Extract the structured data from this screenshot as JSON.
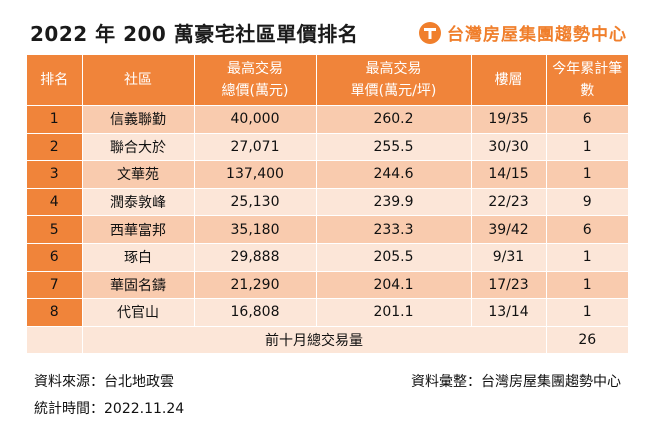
{
  "title": "2022 年 200 萬豪宅社區單價排名",
  "brand": "台灣房屋集團趨勢中心",
  "headers": {
    "rank": "排名",
    "community": "社區",
    "total_price_1": "最高交易",
    "total_price_2": "總價(萬元)",
    "unit_price_1": "最高交易",
    "unit_price_2": "單價(萬元/坪)",
    "floor": "樓層",
    "deals": "今年累計筆數"
  },
  "rows": [
    {
      "rank": "1",
      "community": "信義聯勤",
      "total": "40,000",
      "unit": "260.2",
      "floor": "19/35",
      "deals": "6"
    },
    {
      "rank": "2",
      "community": "聯合大於",
      "total": "27,071",
      "unit": "255.5",
      "floor": "30/30",
      "deals": "1"
    },
    {
      "rank": "3",
      "community": "文華苑",
      "total": "137,400",
      "unit": "244.6",
      "floor": "14/15",
      "deals": "1"
    },
    {
      "rank": "4",
      "community": "潤泰敦峰",
      "total": "25,130",
      "unit": "239.9",
      "floor": "22/23",
      "deals": "9"
    },
    {
      "rank": "5",
      "community": "西華富邦",
      "total": "35,180",
      "unit": "233.3",
      "floor": "39/42",
      "deals": "6"
    },
    {
      "rank": "6",
      "community": "琢白",
      "total": "29,888",
      "unit": "205.5",
      "floor": "9/31",
      "deals": "1"
    },
    {
      "rank": "7",
      "community": "華固名鑄",
      "total": "21,290",
      "unit": "204.1",
      "floor": "17/23",
      "deals": "1"
    },
    {
      "rank": "8",
      "community": "代官山",
      "total": "16,808",
      "unit": "201.1",
      "floor": "13/14",
      "deals": "1"
    }
  ],
  "total_row": {
    "label": "前十月總交易量",
    "value": "26"
  },
  "footer": {
    "source": "資料來源：台北地政雲",
    "compiled": "資料彙整：台灣房屋集團趨勢中心",
    "date": "統計時間：2022.11.24"
  },
  "colors": {
    "header": "#f0843a",
    "row_dark": "#f9cbae",
    "row_light": "#fce6d8",
    "brand": "#f07f2c"
  }
}
